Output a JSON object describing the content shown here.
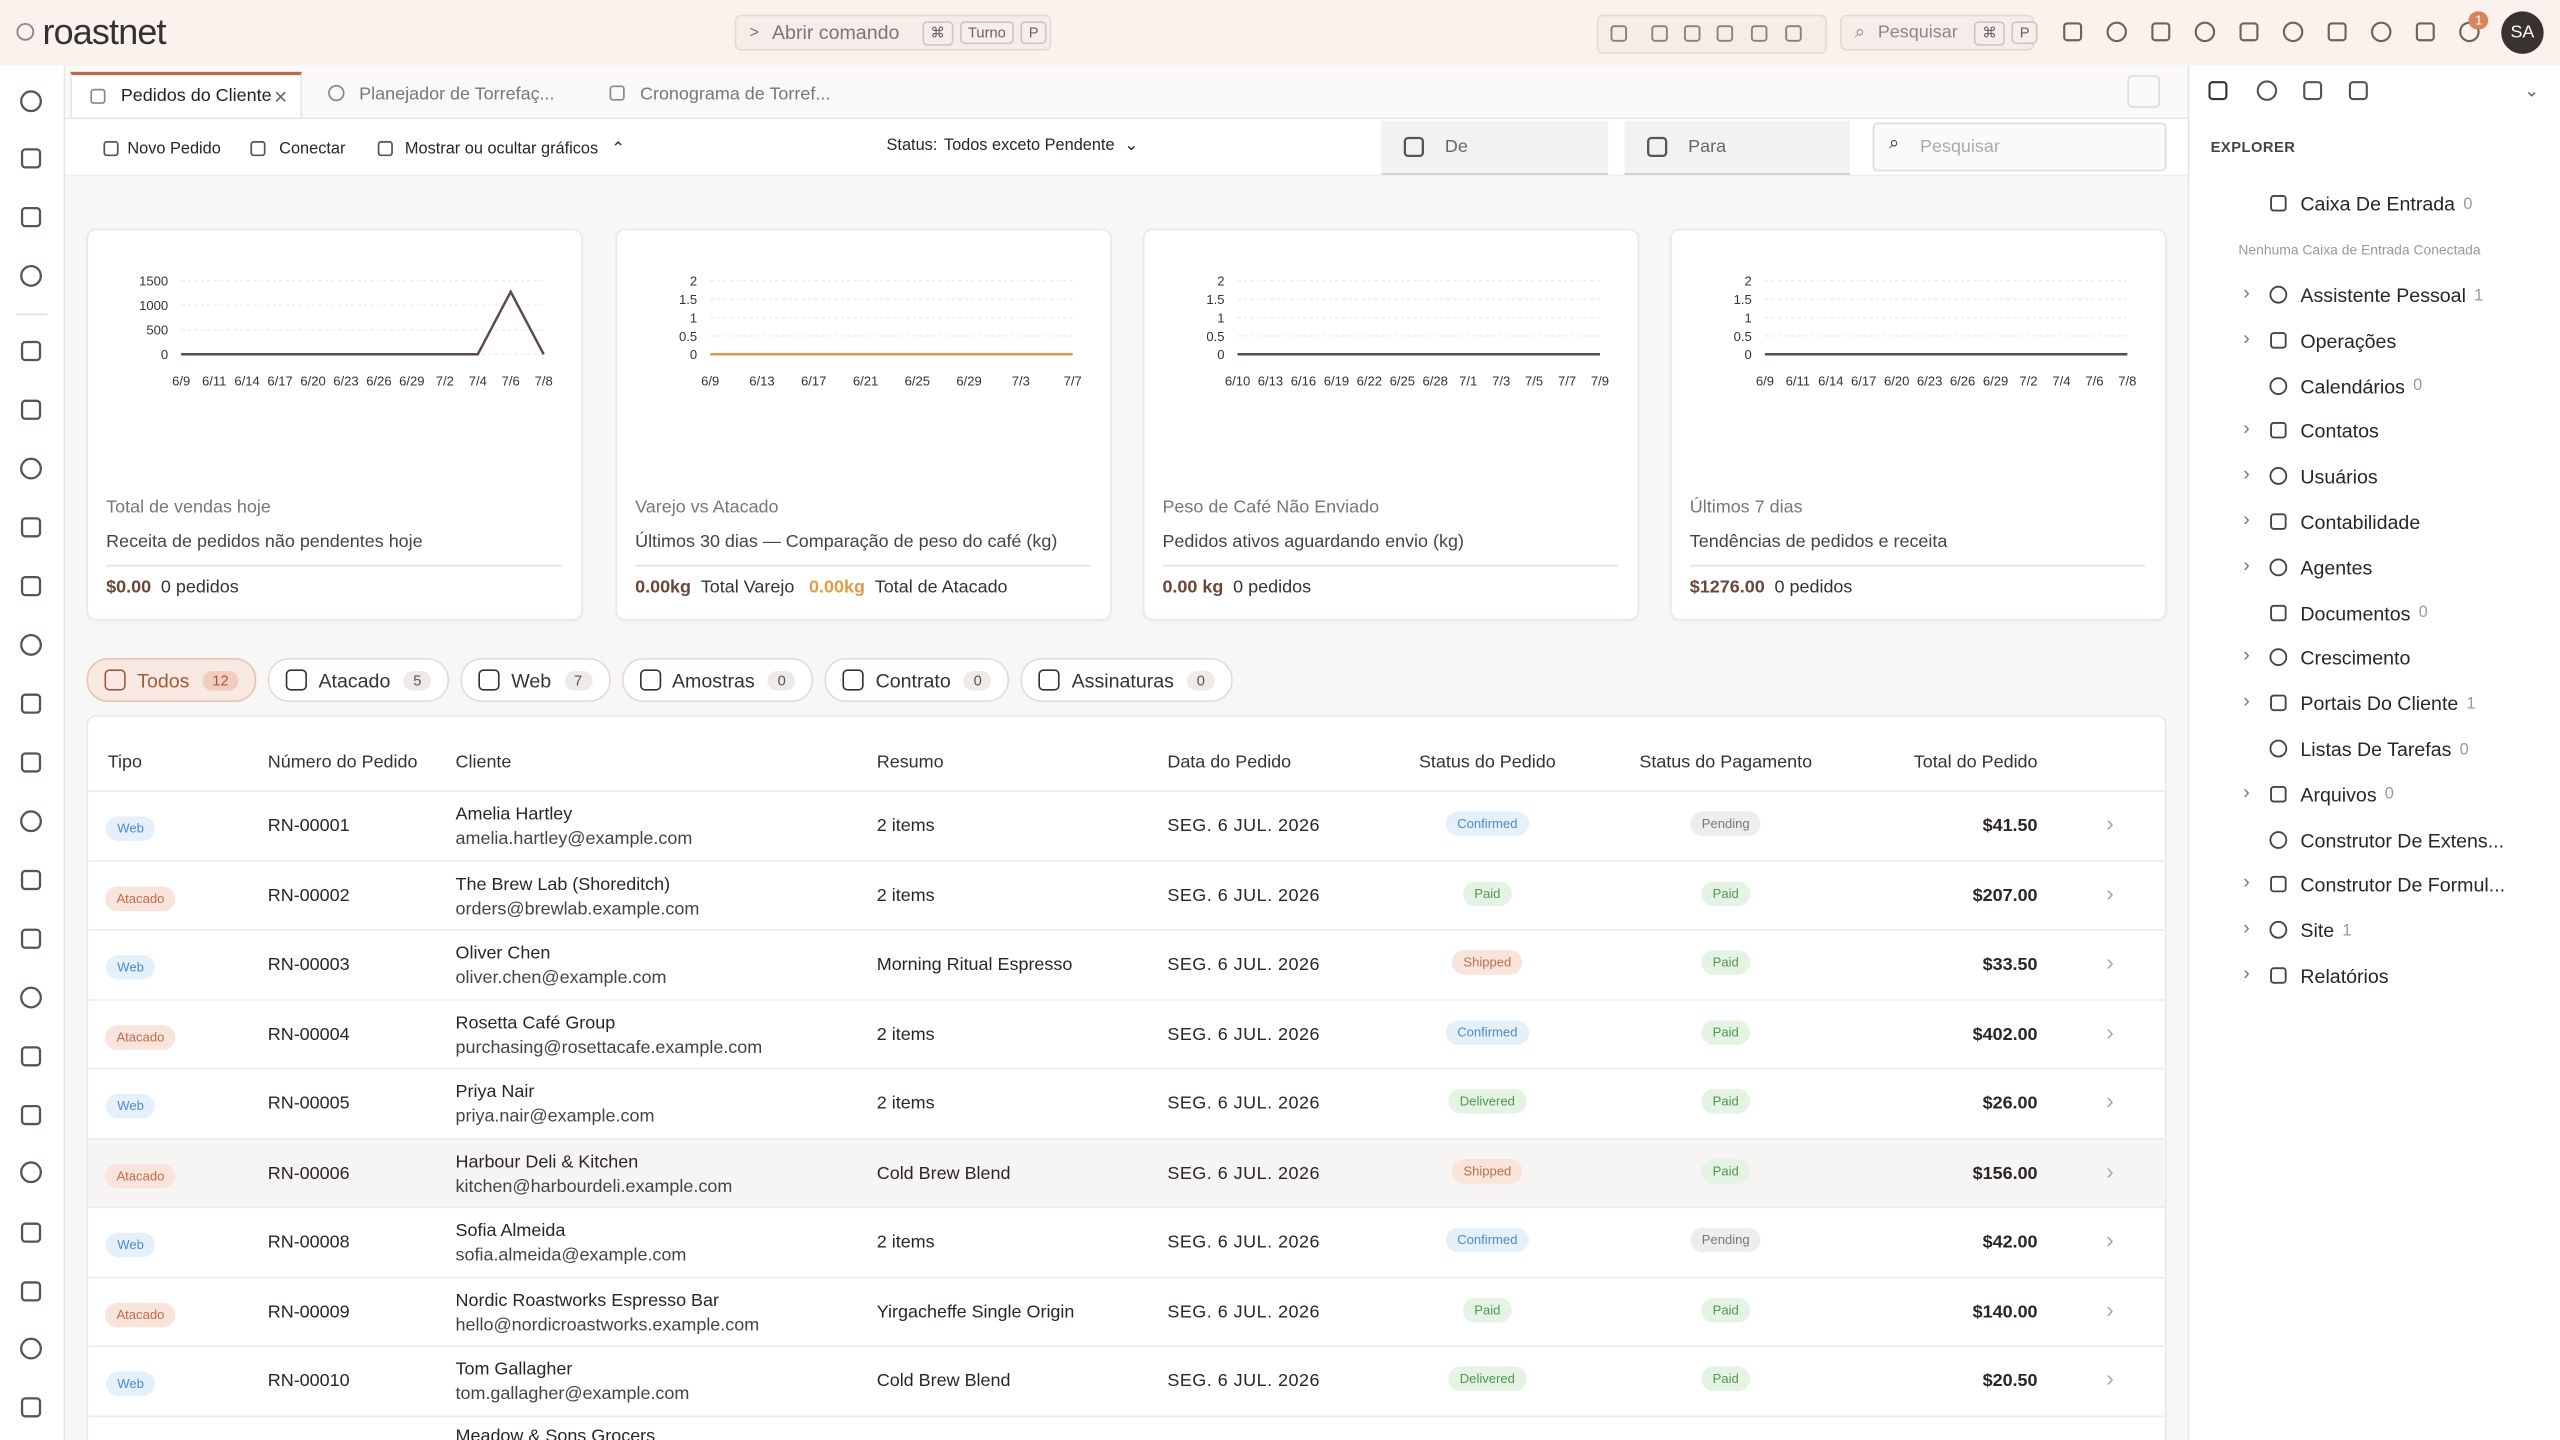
{
  "header": {
    "logo": "roastnet",
    "command": "Abrir comando",
    "command_keys": [
      "⌘",
      "Turno",
      "P"
    ],
    "search": "Pesquisar",
    "search_keys": [
      "⌘",
      "P"
    ],
    "notifications": 1,
    "avatar": "SA"
  },
  "tabs": [
    "Pedidos do Cliente",
    "Planejador de Torrefaç...",
    "Cronograma de Torref..."
  ],
  "toolbar": {
    "new_order": "Novo Pedido",
    "connect": "Conectar",
    "toggle_charts": "Mostrar ou ocultar gráficos",
    "status_label": "Status:",
    "status_value": "Todos exceto Pendente",
    "from": "De",
    "to": "Para",
    "search": "Pesquisar"
  },
  "cards": [
    {
      "chart": {
        "type": "line",
        "categories": [
          "6/9",
          "6/11",
          "6/14",
          "6/17",
          "6/20",
          "6/23",
          "6/26",
          "6/29",
          "7/2",
          "7/4",
          "7/6",
          "7/8"
        ],
        "values": [
          0,
          0,
          0,
          0,
          0,
          0,
          0,
          0,
          0,
          0,
          1276,
          0
        ],
        "ylim": [
          0,
          1500
        ],
        "yticks": [
          0,
          500,
          1000,
          1500
        ],
        "color": "#5b4a44"
      },
      "label": "Total de vendas hoje",
      "description": "Receita de pedidos não pendentes hoje",
      "footer": [
        [
          "$0.00",
          "0 pedidos"
        ]
      ]
    },
    {
      "chart": {
        "type": "line",
        "categories": [
          "6/9",
          "6/13",
          "6/17",
          "6/21",
          "6/25",
          "6/29",
          "7/3",
          "7/7"
        ],
        "values": [
          0,
          0,
          0,
          0,
          0,
          0,
          0,
          0
        ],
        "ylim": [
          0,
          2
        ],
        "yticks": [
          0,
          0.5,
          1,
          1.5,
          2
        ],
        "color": "#e59a45"
      },
      "label": "Varejo vs Atacado",
      "description": "Últimos 30 dias — Comparação de peso do café (kg)",
      "footer": [
        [
          "0.00kg",
          "Total Varejo"
        ],
        [
          "0.00kg",
          "Total de Atacado"
        ]
      ]
    },
    {
      "chart": {
        "type": "line",
        "categories": [
          "6/10",
          "6/13",
          "6/16",
          "6/19",
          "6/22",
          "6/25",
          "6/28",
          "7/1",
          "7/3",
          "7/5",
          "7/7",
          "7/9"
        ],
        "values": [
          0,
          0,
          0,
          0,
          0,
          0,
          0,
          0,
          0,
          0,
          0,
          0
        ],
        "ylim": [
          0,
          2
        ],
        "yticks": [
          0,
          0.5,
          1,
          1.5,
          2
        ],
        "color": "#5b4a44"
      },
      "label": "Peso de Café Não Enviado",
      "description": "Pedidos ativos aguardando envio (kg)",
      "footer": [
        [
          "0.00 kg",
          "0 pedidos"
        ]
      ]
    },
    {
      "chart": {
        "type": "line",
        "categories": [
          "6/9",
          "6/11",
          "6/14",
          "6/17",
          "6/20",
          "6/23",
          "6/26",
          "6/29",
          "7/2",
          "7/4",
          "7/6",
          "7/8"
        ],
        "values": [
          0,
          0,
          0,
          0,
          0,
          0,
          0,
          0,
          0,
          0,
          0,
          0
        ],
        "ylim": [
          0,
          2
        ],
        "yticks": [
          0,
          0.5,
          1,
          1.5,
          2
        ],
        "color": "#5b4a44"
      },
      "label": "Últimos 7 dias",
      "description": "Tendências de pedidos e receita",
      "footer": [
        [
          "$1276.00",
          "0 pedidos"
        ]
      ]
    }
  ],
  "filters": [
    {
      "label": "Todos",
      "count": 12
    },
    {
      "label": "Atacado",
      "count": 5
    },
    {
      "label": "Web",
      "count": 7
    },
    {
      "label": "Amostras",
      "count": 0
    },
    {
      "label": "Contrato",
      "count": 0
    },
    {
      "label": "Assinaturas",
      "count": 0
    }
  ],
  "table": {
    "columns": [
      "Tipo",
      "Número do Pedido",
      "Cliente",
      "Resumo",
      "Data do Pedido",
      "Status do Pedido",
      "Status do Pagamento",
      "Total do Pedido"
    ],
    "rows": [
      {
        "type": "Web",
        "number": "RN-00001",
        "client": "Amelia Hartley",
        "email": "amelia.hartley@example.com",
        "summary": "2 items",
        "date": "SEG. 6 JUL. 2026",
        "order_status": "Confirmed",
        "payment_status": "Pending",
        "total": "$41.50"
      },
      {
        "type": "Atacado",
        "number": "RN-00002",
        "client": "The Brew Lab (Shoreditch)",
        "email": "orders@brewlab.example.com",
        "summary": "2 items",
        "date": "SEG. 6 JUL. 2026",
        "order_status": "Paid",
        "payment_status": "Paid",
        "total": "$207.00"
      },
      {
        "type": "Web",
        "number": "RN-00003",
        "client": "Oliver Chen",
        "email": "oliver.chen@example.com",
        "summary": "Morning Ritual Espresso",
        "date": "SEG. 6 JUL. 2026",
        "order_status": "Shipped",
        "payment_status": "Paid",
        "total": "$33.50"
      },
      {
        "type": "Atacado",
        "number": "RN-00004",
        "client": "Rosetta Café Group",
        "email": "purchasing@rosettacafe.example.com",
        "summary": "2 items",
        "date": "SEG. 6 JUL. 2026",
        "order_status": "Confirmed",
        "payment_status": "Paid",
        "total": "$402.00"
      },
      {
        "type": "Web",
        "number": "RN-00005",
        "client": "Priya Nair",
        "email": "priya.nair@example.com",
        "summary": "2 items",
        "date": "SEG. 6 JUL. 2026",
        "order_status": "Delivered",
        "payment_status": "Paid",
        "total": "$26.00"
      },
      {
        "type": "Atacado",
        "number": "RN-00006",
        "client": "Harbour Deli & Kitchen",
        "email": "kitchen@harbourdeli.example.com",
        "summary": "Cold Brew Blend",
        "date": "SEG. 6 JUL. 2026",
        "order_status": "Shipped",
        "payment_status": "Paid",
        "total": "$156.00"
      },
      {
        "type": "Web",
        "number": "RN-00008",
        "client": "Sofia Almeida",
        "email": "sofia.almeida@example.com",
        "summary": "2 items",
        "date": "SEG. 6 JUL. 2026",
        "order_status": "Confirmed",
        "payment_status": "Pending",
        "total": "$42.00"
      },
      {
        "type": "Atacado",
        "number": "RN-00009",
        "client": "Nordic Roastworks Espresso Bar",
        "email": "hello@nordicroastworks.example.com",
        "summary": "Yirgacheffe Single Origin",
        "date": "SEG. 6 JUL. 2026",
        "order_status": "Paid",
        "payment_status": "Paid",
        "total": "$140.00"
      },
      {
        "type": "Web",
        "number": "RN-00010",
        "client": "Tom Gallagher",
        "email": "tom.gallagher@example.com",
        "summary": "Cold Brew Blend",
        "date": "SEG. 6 JUL. 2026",
        "order_status": "Delivered",
        "payment_status": "Paid",
        "total": "$20.50"
      },
      {
        "client": "Meadow & Sons Grocers"
      }
    ]
  },
  "explorer": {
    "title": "EXPLORER",
    "note": "Nenhuma Caixa de Entrada Conectada",
    "items": [
      {
        "label": "Caixa De Entrada",
        "count": 0,
        "expandable": false
      },
      {
        "label": "Assistente Pessoal",
        "count": 1,
        "expandable": true
      },
      {
        "label": "Operações",
        "expandable": true
      },
      {
        "label": "Calendários",
        "count": 0,
        "expandable": false
      },
      {
        "label": "Contatos",
        "expandable": true
      },
      {
        "label": "Usuários",
        "expandable": true
      },
      {
        "label": "Contabilidade",
        "expandable": true
      },
      {
        "label": "Agentes",
        "expandable": true
      },
      {
        "label": "Documentos",
        "count": 0,
        "expandable": false
      },
      {
        "label": "Crescimento",
        "expandable": true
      },
      {
        "label": "Portais Do Cliente",
        "count": 1,
        "expandable": true
      },
      {
        "label": "Listas De Tarefas",
        "count": 0,
        "expandable": false
      },
      {
        "label": "Arquivos",
        "count": 0,
        "expandable": true
      },
      {
        "label": "Construtor De Extens...",
        "expandable": false
      },
      {
        "label": "Construtor De Formul...",
        "expandable": true
      },
      {
        "label": "Site",
        "count": 1,
        "expandable": true
      },
      {
        "label": "Relatórios",
        "expandable": true
      }
    ]
  }
}
